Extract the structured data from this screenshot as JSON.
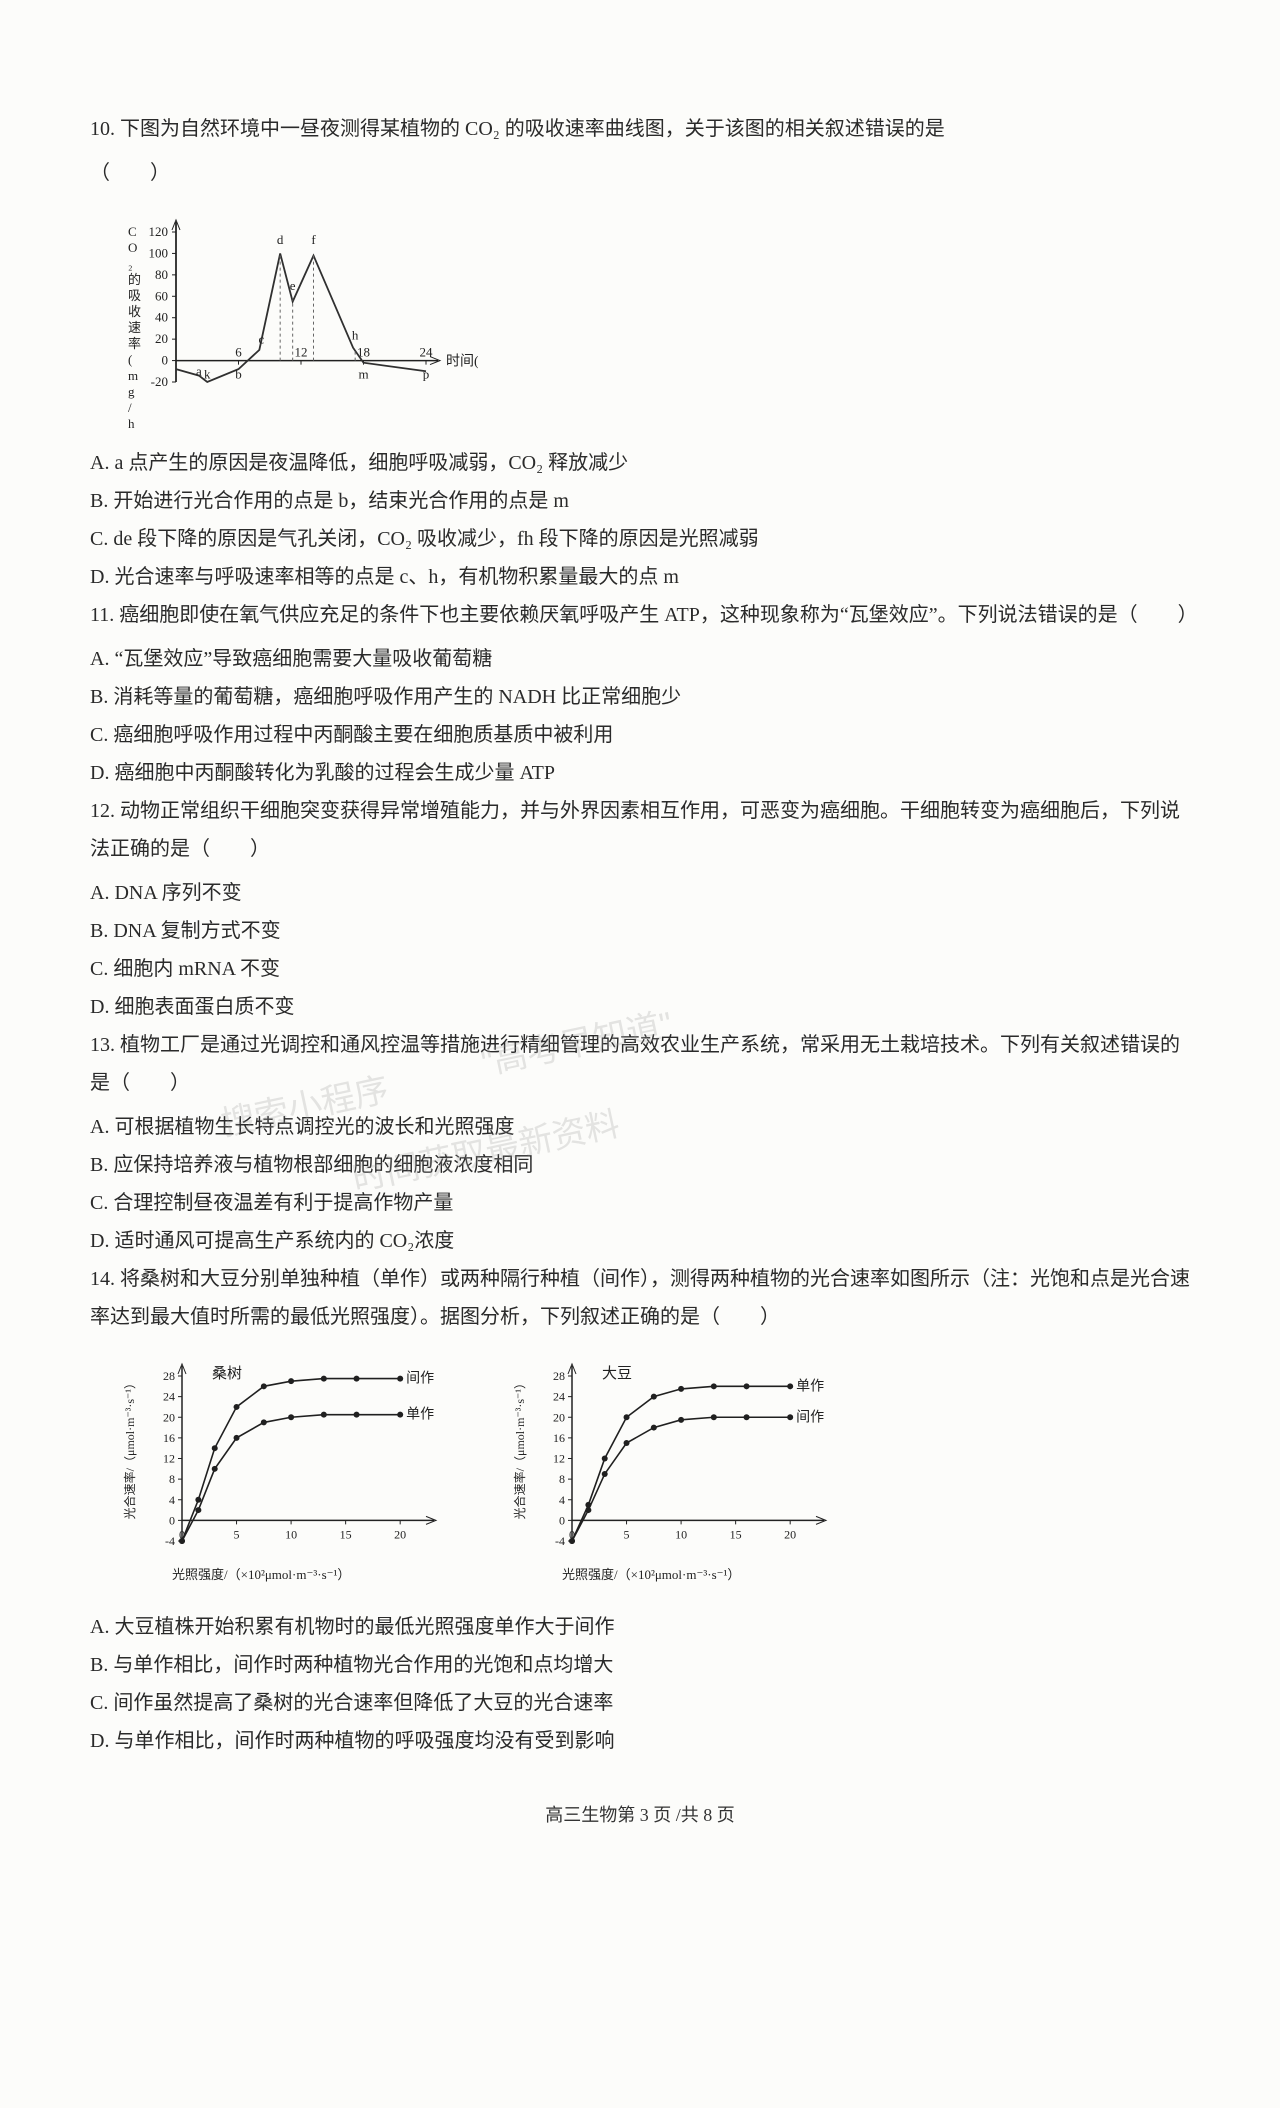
{
  "q10": {
    "stem": "10. 下图为自然环境中一昼夜测得某植物的 CO₂ 的吸收速率曲线图，关于该图的相关叙述错误的是",
    "paren": "（　　）",
    "chart": {
      "type": "line",
      "x_label": "时间(h)",
      "y_label": "CO₂的吸收速率(mg/h)",
      "y_ticks": [
        -20,
        0,
        20,
        40,
        60,
        80,
        100,
        120
      ],
      "x_ticks": [
        6,
        12,
        18,
        24
      ],
      "x_letters": [
        {
          "t": "a",
          "h": 2.2,
          "y": -10
        },
        {
          "t": "k",
          "h": 3.0,
          "y": -24
        },
        {
          "t": "b",
          "h": 6.0,
          "y": -24
        },
        {
          "t": "c",
          "h": 8.2,
          "y": 12
        },
        {
          "t": "d",
          "h": 10.0,
          "y": 105
        },
        {
          "t": "e",
          "h": 11.2,
          "y": 62
        },
        {
          "t": "f",
          "h": 13.2,
          "y": 105
        },
        {
          "t": "h",
          "h": 17.2,
          "y": 16
        },
        {
          "t": "m",
          "h": 18.0,
          "y": -24
        },
        {
          "t": "p",
          "h": 24.0,
          "y": -24
        }
      ],
      "points": [
        {
          "h": 0,
          "v": -8
        },
        {
          "h": 2.2,
          "v": -14
        },
        {
          "h": 3.0,
          "v": -20
        },
        {
          "h": 6.0,
          "v": -8
        },
        {
          "h": 8.0,
          "v": 10
        },
        {
          "h": 10.0,
          "v": 100
        },
        {
          "h": 11.2,
          "v": 55
        },
        {
          "h": 13.2,
          "v": 98
        },
        {
          "h": 17.0,
          "v": 12
        },
        {
          "h": 18.0,
          "v": -2
        },
        {
          "h": 24.0,
          "v": -10
        }
      ],
      "line_color": "#303030",
      "axis_color": "#202020"
    },
    "A": "A. a 点产生的原因是夜温降低，细胞呼吸减弱，CO₂ 释放减少",
    "B": "B. 开始进行光合作用的点是 b，结束光合作用的点是 m",
    "C": "C. de 段下降的原因是气孔关闭，CO₂ 吸收减少，fh 段下降的原因是光照减弱",
    "D": "D. 光合速率与呼吸速率相等的点是 c、h，有机物积累量最大的点 m"
  },
  "q11": {
    "stem": "11. 癌细胞即使在氧气供应充足的条件下也主要依赖厌氧呼吸产生 ATP，这种现象称为“瓦堡效应”。下列说法错误的是（　　）",
    "A": "A. “瓦堡效应”导致癌细胞需要大量吸收葡萄糖",
    "B": "B. 消耗等量的葡萄糖，癌细胞呼吸作用产生的 NADH 比正常细胞少",
    "C": "C. 癌细胞呼吸作用过程中丙酮酸主要在细胞质基质中被利用",
    "D": "D. 癌细胞中丙酮酸转化为乳酸的过程会生成少量 ATP"
  },
  "q12": {
    "stem": "12. 动物正常组织干细胞突变获得异常增殖能力，并与外界因素相互作用，可恶变为癌细胞。干细胞转变为癌细胞后，下列说法正确的是（　　）",
    "A": "A. DNA 序列不变",
    "B": "B. DNA 复制方式不变",
    "C": "C. 细胞内 mRNA 不变",
    "D": "D. 细胞表面蛋白质不变"
  },
  "q13": {
    "stem": "13. 植物工厂是通过光调控和通风控温等措施进行精细管理的高效农业生产系统，常采用无土栽培技术。下列有关叙述错误的是（　　）",
    "A": "A. 可根据植物生长特点调控光的波长和光照强度",
    "B": "B. 应保持培养液与植物根部细胞的细胞液浓度相同",
    "C": "C. 合理控制昼夜温差有利于提高作物产量",
    "D": "D. 适时通风可提高生产系统内的 CO₂浓度"
  },
  "q14": {
    "stem": "14. 将桑树和大豆分别单独种植（单作）或两种隔行种植（间作），测得两种植物的光合速率如图所示（注：光饱和点是光合速率达到最大值时所需的最低光照强度）。据图分析，下列叙述正确的是（　　）",
    "charts": {
      "type": "line",
      "y_label": "光合速率/（μmol·m⁻³·s⁻¹）",
      "x_label": "光照强度/（×10²μmol·m⁻³·s⁻¹）",
      "y_ticks": [
        -4,
        0,
        4,
        8,
        12,
        16,
        20,
        24,
        28
      ],
      "x_ticks": [
        5,
        10,
        15,
        20
      ],
      "title1": "桑树",
      "title2": "大豆",
      "legend_top": "间作",
      "legend_bot": "单作",
      "legend_top2": "单作",
      "legend_bot2": "间作",
      "line_color": "#202020",
      "marker_color": "#202020",
      "series": {
        "mulberry_inter": [
          {
            "x": 0,
            "y": -4
          },
          {
            "x": 1.5,
            "y": 4
          },
          {
            "x": 3,
            "y": 14
          },
          {
            "x": 5,
            "y": 22
          },
          {
            "x": 7.5,
            "y": 26
          },
          {
            "x": 10,
            "y": 27
          },
          {
            "x": 13,
            "y": 27.5
          },
          {
            "x": 16,
            "y": 27.5
          },
          {
            "x": 20,
            "y": 27.5
          }
        ],
        "mulberry_single": [
          {
            "x": 0,
            "y": -4
          },
          {
            "x": 1.5,
            "y": 2
          },
          {
            "x": 3,
            "y": 10
          },
          {
            "x": 5,
            "y": 16
          },
          {
            "x": 7.5,
            "y": 19
          },
          {
            "x": 10,
            "y": 20
          },
          {
            "x": 13,
            "y": 20.5
          },
          {
            "x": 16,
            "y": 20.5
          },
          {
            "x": 20,
            "y": 20.5
          }
        ],
        "soy_single": [
          {
            "x": 0,
            "y": -4
          },
          {
            "x": 1.5,
            "y": 3
          },
          {
            "x": 3,
            "y": 12
          },
          {
            "x": 5,
            "y": 20
          },
          {
            "x": 7.5,
            "y": 24
          },
          {
            "x": 10,
            "y": 25.5
          },
          {
            "x": 13,
            "y": 26
          },
          {
            "x": 16,
            "y": 26
          },
          {
            "x": 20,
            "y": 26
          }
        ],
        "soy_inter": [
          {
            "x": 0,
            "y": -4
          },
          {
            "x": 1.5,
            "y": 2
          },
          {
            "x": 3,
            "y": 9
          },
          {
            "x": 5,
            "y": 15
          },
          {
            "x": 7.5,
            "y": 18
          },
          {
            "x": 10,
            "y": 19.5
          },
          {
            "x": 13,
            "y": 20
          },
          {
            "x": 16,
            "y": 20
          },
          {
            "x": 20,
            "y": 20
          }
        ]
      }
    },
    "A": "A. 大豆植株开始积累有机物时的最低光照强度单作大于间作",
    "B": "B. 与单作相比，间作时两种植物光合作用的光饱和点均增大",
    "C": "C. 间作虽然提高了桑树的光合速率但降低了大豆的光合速率",
    "D": "D. 与单作相比，间作时两种植物的呼吸强度均没有受到影响"
  },
  "watermarks": {
    "w1": "搜索小程序",
    "w2": "\"高考早知道\"",
    "w3": "时间获取最新资料"
  },
  "footer": "高三生物第 3 页 /共 8 页"
}
